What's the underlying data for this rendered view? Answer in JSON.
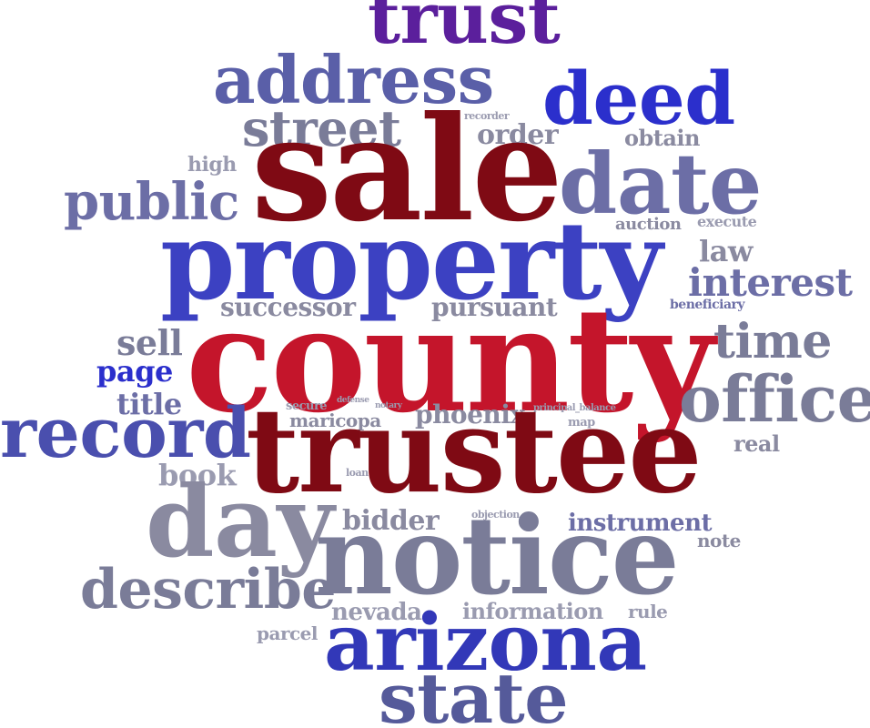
{
  "words": [
    {
      "text": "trust",
      "color": "#5b1f9c"
    },
    {
      "text": "address",
      "color": "#5a5fa8"
    },
    {
      "text": "deed",
      "color": "#2b2fcc"
    },
    {
      "text": "street",
      "color": "#7a7c98"
    },
    {
      "text": "recorder",
      "color": "#9a9bb0"
    },
    {
      "text": "order",
      "color": "#8a8aa0"
    },
    {
      "text": "obtain",
      "color": "#8a8aa0"
    },
    {
      "text": "high",
      "color": "#9a9bb0"
    },
    {
      "text": "sale",
      "color": "#7f0a14"
    },
    {
      "text": "date",
      "color": "#6c6ea6"
    },
    {
      "text": "public",
      "color": "#6c6ea6"
    },
    {
      "text": "auction",
      "color": "#8a8aa0"
    },
    {
      "text": "execute",
      "color": "#9a9bb0"
    },
    {
      "text": "property",
      "color": "#3c41c2"
    },
    {
      "text": "law",
      "color": "#8a8aa0"
    },
    {
      "text": "interest",
      "color": "#6c6ea6"
    },
    {
      "text": "successor",
      "color": "#8a8aa0"
    },
    {
      "text": "pursuant",
      "color": "#8a8aa0"
    },
    {
      "text": "beneficiary",
      "color": "#6c6ea6"
    },
    {
      "text": "sell",
      "color": "#7a7c98"
    },
    {
      "text": "county",
      "color": "#c4152b"
    },
    {
      "text": "time",
      "color": "#7a7c98"
    },
    {
      "text": "page",
      "color": "#2b2fcc"
    },
    {
      "text": "office",
      "color": "#7a7c98"
    },
    {
      "text": "title",
      "color": "#6c6ea6"
    },
    {
      "text": "secure",
      "color": "#9a9bb0"
    },
    {
      "text": "defense",
      "color": "#9a9bb0"
    },
    {
      "text": "notary",
      "color": "#9a9bb0"
    },
    {
      "text": "principal_balance",
      "color": "#9a9bb0"
    },
    {
      "text": "maricopa",
      "color": "#8a8aa0"
    },
    {
      "text": "phoenix",
      "color": "#8a8aa0"
    },
    {
      "text": "map",
      "color": "#9a9bb0"
    },
    {
      "text": "record",
      "color": "#4a4fae"
    },
    {
      "text": "trustee",
      "color": "#7f0a14"
    },
    {
      "text": "real",
      "color": "#8a8aa0"
    },
    {
      "text": "book",
      "color": "#9a9bb0"
    },
    {
      "text": "loan",
      "color": "#9a9bb0"
    },
    {
      "text": "day",
      "color": "#8a8aa0"
    },
    {
      "text": "bidder",
      "color": "#8a8aa0"
    },
    {
      "text": "objection",
      "color": "#9a9bb0"
    },
    {
      "text": "instrument",
      "color": "#6c6ea6"
    },
    {
      "text": "notice",
      "color": "#7a7c98"
    },
    {
      "text": "note",
      "color": "#8a8aa0"
    },
    {
      "text": "describe",
      "color": "#7a7c98"
    },
    {
      "text": "nevada",
      "color": "#9a9bb0"
    },
    {
      "text": "information",
      "color": "#9a9bb0"
    },
    {
      "text": "rule",
      "color": "#9a9bb0"
    },
    {
      "text": "parcel",
      "color": "#9a9bb0"
    },
    {
      "text": "arizona",
      "color": "#3238b8"
    },
    {
      "text": "state",
      "color": "#555a9a"
    }
  ]
}
